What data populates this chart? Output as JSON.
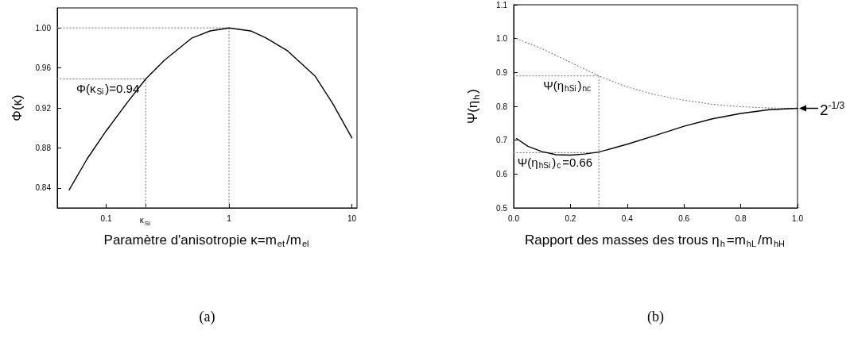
{
  "chart_data": [
    {
      "type": "line",
      "xlabel": "Paramètre d'anisotropie κ=m$_{et}$/m$_{el}$",
      "ylabel": "Φ(κ)",
      "log": "x",
      "grid": false,
      "marker": "none",
      "xlim": [
        0.04,
        11
      ],
      "xticks": [
        0.1,
        {
          "value": 0.21,
          "label": "κ$_{Si}$"
        },
        1,
        10
      ],
      "ylim": [
        0.82,
        1.02
      ],
      "yticks": [
        {
          "value": 0.84,
          "label": "0.84"
        },
        {
          "value": 0.88,
          "label": "0.88"
        },
        {
          "value": 0.92,
          "label": "0.92"
        },
        {
          "value": 0.96,
          "label": "0.96"
        },
        {
          "value": 1.0,
          "label": "1.00"
        }
      ],
      "series": [
        {
          "color": "#000000",
          "line_style": "solid",
          "x": [
            0.05,
            0.07,
            0.1,
            0.15,
            0.21,
            0.3,
            0.5,
            0.7,
            1,
            1.5,
            2,
            3,
            5,
            7,
            10
          ],
          "values": [
            0.838,
            0.869,
            0.897,
            0.926,
            0.949,
            0.968,
            0.99,
            0.997,
            1.0,
            0.997,
            0.99,
            0.977,
            0.952,
            0.924,
            0.89
          ]
        },
        {
          "color": "#808080",
          "line_style": "dotted",
          "x": [
            0.04,
            1,
            1
          ],
          "values": [
            1.0,
            1.0,
            0.82
          ]
        },
        {
          "color": "#808080",
          "line_style": "dotted",
          "x": [
            0.04,
            0.21,
            0.21
          ],
          "values": [
            0.949,
            0.949,
            0.82
          ]
        }
      ],
      "annotations": [
        {
          "text": "Φ(κ$_{Si}$)=0.94",
          "x": 0.21,
          "y": 0.949
        },
        "(a)"
      ]
    },
    {
      "type": "line",
      "xlabel": "Rapport des masses des trous η$_{h}$=m$_{hL}$/m$_{hH}$",
      "ylabel": "Ψ(η$_{h}$)",
      "grid": false,
      "marker": "none",
      "xlim": [
        0,
        1
      ],
      "xticks": [
        {
          "value": 0,
          "label": "0.0"
        },
        0.2,
        0.4,
        0.6,
        0.8,
        {
          "value": 1,
          "label": "1.0"
        }
      ],
      "ylim": [
        0.5,
        1.1
      ],
      "yticks": [
        0.5,
        0.6,
        0.7,
        0.8,
        0.9,
        {
          "value": 1,
          "label": "1.0"
        },
        1.1
      ],
      "series": [
        {
          "color": "#000000",
          "line_style": "solid",
          "x": [
            0.01,
            0.05,
            0.1,
            0.15,
            0.2,
            0.25,
            0.3,
            0.4,
            0.5,
            0.6,
            0.7,
            0.8,
            0.9,
            1.0
          ],
          "values": [
            0.705,
            0.682,
            0.666,
            0.657,
            0.656,
            0.659,
            0.665,
            0.688,
            0.714,
            0.741,
            0.763,
            0.779,
            0.79,
            0.794
          ]
        },
        {
          "color": "#808080",
          "line_style": "dotted",
          "x": [
            0.01,
            0.1,
            0.2,
            0.3,
            0.4,
            0.5,
            0.6,
            0.7,
            0.8,
            0.9,
            1.0
          ],
          "values": [
            1.0,
            0.97,
            0.93,
            0.89,
            0.857,
            0.834,
            0.818,
            0.806,
            0.799,
            0.795,
            0.794
          ]
        },
        {
          "color": "#808080",
          "line_style": "dotted",
          "x": [
            0,
            0.3,
            0.3
          ],
          "values": [
            0.89,
            0.89,
            0.5
          ]
        },
        {
          "color": "#808080",
          "line_style": "dotted",
          "x": [
            0,
            0.3
          ],
          "values": [
            0.663,
            0.663
          ]
        }
      ],
      "annotations": [
        {
          "text": "Ψ(η$_{hSi}$)$_{nc}$",
          "x": 0.3,
          "y": 0.89
        },
        {
          "text": "Ψ(η$_{hSi}$)$_{c}$=0.66",
          "x": 0.3,
          "y": 0.663
        },
        {
          "text": "2$^{-1/3}$",
          "x": 1.0,
          "y": 0.794
        },
        "(b)"
      ]
    }
  ]
}
